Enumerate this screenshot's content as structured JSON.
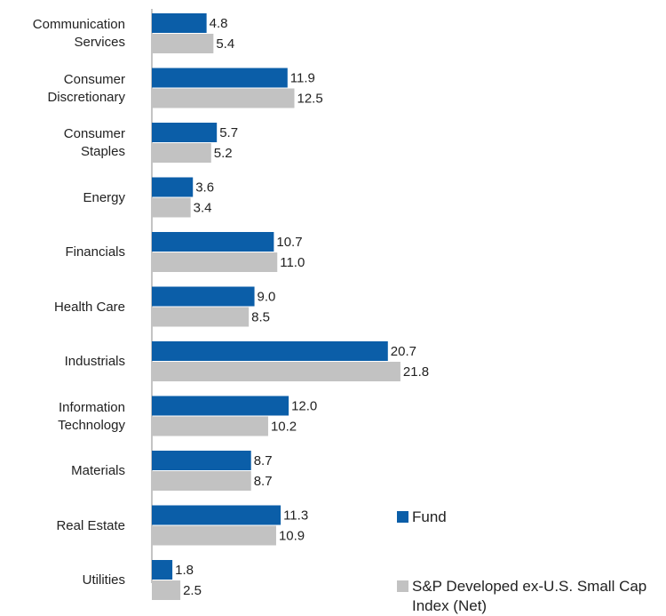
{
  "chart_data": {
    "type": "barh",
    "categories": [
      "Communication Services",
      "Consumer Discretionary",
      "Consumer Staples",
      "Energy",
      "Financials",
      "Health Care",
      "Industrials",
      "Information Technology",
      "Materials",
      "Real Estate",
      "Utilities"
    ],
    "series": [
      {
        "name": "Fund",
        "color": "#0b5ea8",
        "values": [
          4.8,
          11.9,
          5.7,
          3.6,
          10.7,
          9.0,
          20.7,
          12.0,
          8.7,
          11.3,
          1.8
        ],
        "value_labels": [
          "4.8",
          "11.9",
          "5.7",
          "3.6",
          "10.7",
          "9.0",
          "20.7",
          "12.0",
          "8.7",
          "11.3",
          "1.8"
        ]
      },
      {
        "name": "S&P Developed ex-U.S. Small Cap Index (Net)",
        "color": "#c2c2c2",
        "values": [
          5.4,
          12.5,
          5.2,
          3.4,
          11.0,
          8.5,
          21.8,
          10.2,
          8.7,
          10.9,
          2.5
        ],
        "value_labels": [
          "5.4",
          "12.5",
          "5.2",
          "3.4",
          "11.0",
          "8.5",
          "21.8",
          "10.2",
          "8.7",
          "10.9",
          "2.5"
        ]
      }
    ],
    "xlim": [
      0,
      25
    ]
  }
}
